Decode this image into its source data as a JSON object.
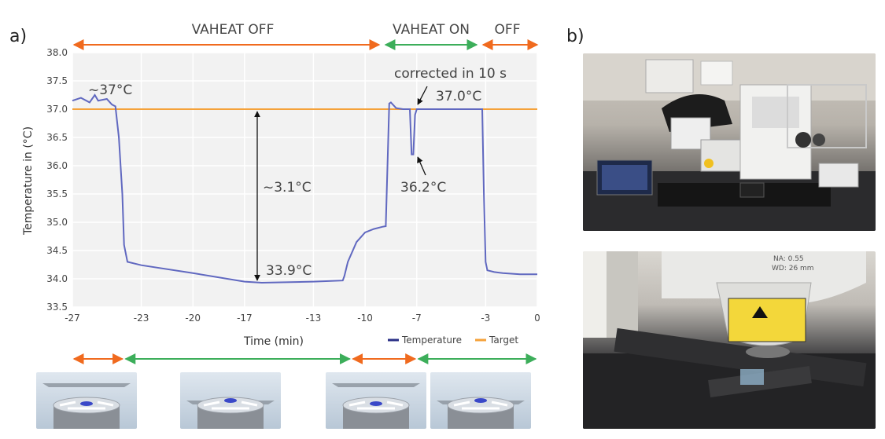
{
  "panels": {
    "a": "a)",
    "b": "b)"
  },
  "phases": [
    {
      "label": "VAHEAT OFF",
      "color": "#f06a1e"
    },
    {
      "label": "VAHEAT ON",
      "color": "#3cae5a"
    },
    {
      "label": "OFF",
      "color": "#f06a1e"
    }
  ],
  "colors": {
    "temperature": "#6068c0",
    "target": "#f5a23a",
    "off": "#f06a1e",
    "on": "#3cae5a",
    "plot_bg": "#f2f2f2"
  },
  "annotations": {
    "peak": "~37°C",
    "corrected": "corrected in 10 s",
    "restored": "37.0°C",
    "dip": "36.2°C",
    "drop": "~3.1°C",
    "minimum": "33.9°C"
  },
  "lower_arrows": [
    {
      "from": -27,
      "to": -24,
      "state": "off"
    },
    {
      "from": -24,
      "to": -10.8,
      "state": "on"
    },
    {
      "from": -10.8,
      "to": -7,
      "state": "off"
    },
    {
      "from": -7,
      "to": 0,
      "state": "on"
    }
  ],
  "thumbnails": [
    {
      "name": "objective-lifted",
      "lifted": true
    },
    {
      "name": "objective-contact",
      "lifted": false
    },
    {
      "name": "objective-lifted",
      "lifted": true
    },
    {
      "name": "objective-contact",
      "lifted": false
    }
  ],
  "photo_top": {
    "name": "microscope-setup-photo"
  },
  "photo_bottom": {
    "name": "objective-closeup-photo",
    "na_label": "NA: 0.55",
    "wd_label": "WD: 26 mm"
  },
  "chart_data": {
    "type": "line",
    "title": "",
    "xlabel": "Time (min)",
    "ylabel": "Temperature in (°C)",
    "xlim": [
      -27,
      0
    ],
    "ylim": [
      33.5,
      38.0
    ],
    "x_ticks": [
      -27,
      -23,
      -20,
      -17,
      -13,
      -10,
      -7,
      -3,
      0
    ],
    "y_ticks": [
      "38.0",
      "37.5",
      "37.0",
      "36.5",
      "36.0",
      "35.5",
      "35.0",
      "34.5",
      "34.0",
      "33.5"
    ],
    "grid": true,
    "legend_position": "bottom-right",
    "series": [
      {
        "name": "Temperature",
        "color": "#6068c0",
        "x": [
          -27,
          -26.5,
          -26,
          -25.7,
          -25.5,
          -25,
          -24.7,
          -24.5,
          -24.3,
          -24.1,
          -24.0,
          -23.8,
          -23.0,
          -20,
          -17,
          -16,
          -13,
          -11.3,
          -11.2,
          -11.0,
          -10.5,
          -10,
          -9.5,
          -9.0,
          -8.8,
          -8.6,
          -8.5,
          -8.2,
          -7.8,
          -7.4,
          -7.3,
          -7.2,
          -7.1,
          -7.0,
          -6.5,
          -5,
          -3.2,
          -3.1,
          -3.0,
          -2.9,
          -2.5,
          -2,
          -1,
          0
        ],
        "y": [
          37.15,
          37.2,
          37.12,
          37.25,
          37.15,
          37.18,
          37.08,
          37.05,
          36.5,
          35.5,
          34.6,
          34.3,
          34.24,
          34.1,
          33.95,
          33.93,
          33.95,
          33.97,
          34.05,
          34.3,
          34.65,
          34.82,
          34.88,
          34.92,
          34.93,
          37.1,
          37.12,
          37.02,
          37.0,
          37.0,
          36.2,
          36.2,
          36.9,
          37.0,
          37.0,
          37.0,
          37.0,
          35.5,
          34.3,
          34.15,
          34.12,
          34.1,
          34.08,
          34.08
        ]
      },
      {
        "name": "Target",
        "color": "#f5a23a",
        "x": [
          -27,
          0
        ],
        "y": [
          37.0,
          37.0
        ]
      }
    ]
  }
}
